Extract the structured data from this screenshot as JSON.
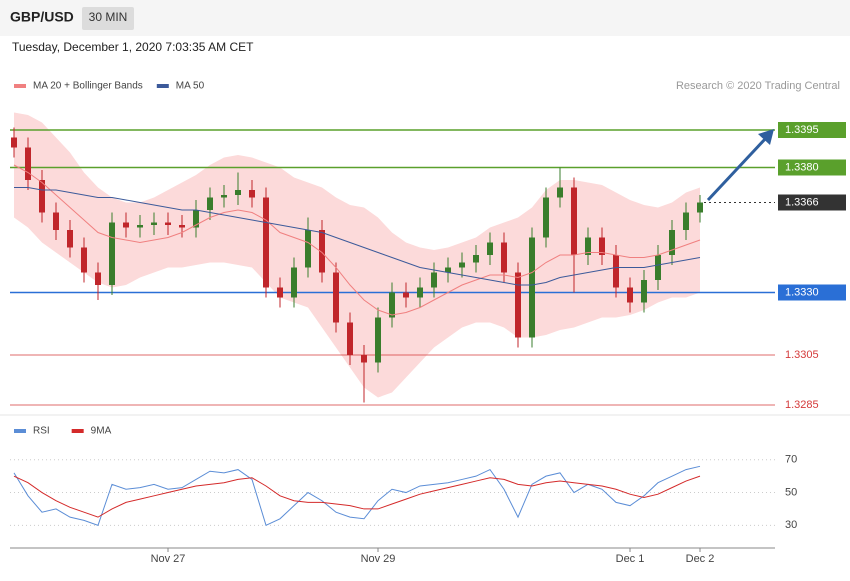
{
  "header": {
    "symbol": "GBP/USD",
    "timeframe": "30 MIN",
    "timestamp": "Tuesday, December 1, 2020 7:03:35 AM CET",
    "source": "Research © 2020 Trading Central"
  },
  "chart_data": [
    {
      "type": "candlestick",
      "ylim": [
        1.3283,
        1.3407
      ],
      "up_color": "#3a7d2c",
      "down_color": "#c0262b",
      "open": [
        1.3392,
        1.3388,
        1.3375,
        1.3362,
        1.3355,
        1.3348,
        1.3338,
        1.3333,
        1.3358,
        1.3356,
        1.3357,
        1.3358,
        1.3357,
        1.3356,
        1.3363,
        1.3368,
        1.3369,
        1.3371,
        1.3368,
        1.3332,
        1.3328,
        1.334,
        1.3355,
        1.3338,
        1.3318,
        1.3305,
        1.3302,
        1.332,
        1.333,
        1.3328,
        1.3332,
        1.3338,
        1.334,
        1.3342,
        1.3345,
        1.335,
        1.3338,
        1.3312,
        1.3352,
        1.3368,
        1.3372,
        1.3345,
        1.3352,
        1.3345,
        1.3332,
        1.3326,
        1.3335,
        1.3345,
        1.3355,
        1.3362
      ],
      "high": [
        1.3396,
        1.3392,
        1.3379,
        1.3366,
        1.3359,
        1.3352,
        1.3342,
        1.3362,
        1.3362,
        1.3361,
        1.3362,
        1.3362,
        1.3361,
        1.3367,
        1.3372,
        1.3373,
        1.3378,
        1.3375,
        1.3372,
        1.3336,
        1.3344,
        1.336,
        1.3359,
        1.3342,
        1.3322,
        1.3309,
        1.3324,
        1.3334,
        1.3334,
        1.3336,
        1.3342,
        1.3344,
        1.3346,
        1.3349,
        1.3354,
        1.3354,
        1.3342,
        1.3356,
        1.3372,
        1.338,
        1.3376,
        1.3356,
        1.3356,
        1.3349,
        1.3336,
        1.3339,
        1.3349,
        1.3359,
        1.3366,
        1.3369
      ],
      "low": [
        1.3384,
        1.3371,
        1.3358,
        1.3351,
        1.3344,
        1.3334,
        1.3327,
        1.3329,
        1.3352,
        1.3352,
        1.3353,
        1.3353,
        1.3352,
        1.3352,
        1.3359,
        1.3364,
        1.3365,
        1.3364,
        1.3328,
        1.3324,
        1.3324,
        1.3336,
        1.3334,
        1.3314,
        1.3301,
        1.3286,
        1.3298,
        1.3316,
        1.3324,
        1.3324,
        1.3328,
        1.3334,
        1.3336,
        1.3338,
        1.3341,
        1.3334,
        1.3308,
        1.3308,
        1.3348,
        1.3364,
        1.333,
        1.3341,
        1.3341,
        1.3328,
        1.3322,
        1.3322,
        1.3331,
        1.3341,
        1.3351,
        1.3358
      ],
      "close": [
        1.3388,
        1.3375,
        1.3362,
        1.3355,
        1.3348,
        1.3338,
        1.3333,
        1.3358,
        1.3356,
        1.3357,
        1.3358,
        1.3357,
        1.3356,
        1.3363,
        1.3368,
        1.3369,
        1.3371,
        1.3368,
        1.3332,
        1.3328,
        1.334,
        1.3355,
        1.3338,
        1.3318,
        1.3305,
        1.3302,
        1.332,
        1.333,
        1.3328,
        1.3332,
        1.3338,
        1.334,
        1.3342,
        1.3345,
        1.335,
        1.3338,
        1.3312,
        1.3352,
        1.3368,
        1.3372,
        1.3345,
        1.3352,
        1.3345,
        1.3332,
        1.3326,
        1.3335,
        1.3345,
        1.3355,
        1.3362,
        1.3366
      ],
      "series": [
        {
          "name": "MA 20 + Bollinger Bands",
          "color": "#f08080",
          "band_color": "#fcdada",
          "values": [
            1.3381,
            1.3378,
            1.3374,
            1.3369,
            1.3364,
            1.3359,
            1.3354,
            1.3352,
            1.3351,
            1.335,
            1.3351,
            1.3352,
            1.3354,
            1.3357,
            1.336,
            1.3362,
            1.3363,
            1.3362,
            1.3359,
            1.3354,
            1.3352,
            1.335,
            1.3346,
            1.334,
            1.3333,
            1.3327,
            1.3323,
            1.3321,
            1.3322,
            1.3324,
            1.3327,
            1.333,
            1.3333,
            1.3335,
            1.3337,
            1.3337,
            1.3336,
            1.3338,
            1.3342,
            1.3345,
            1.3345,
            1.3346,
            1.3346,
            1.3345,
            1.3344,
            1.3344,
            1.3345,
            1.3347,
            1.3349,
            1.3351
          ],
          "upper": [
            1.3402,
            1.3401,
            1.3398,
            1.3392,
            1.3386,
            1.3378,
            1.3372,
            1.3368,
            1.3366,
            1.3366,
            1.3368,
            1.3371,
            1.3374,
            1.3377,
            1.3381,
            1.3384,
            1.3385,
            1.3384,
            1.3382,
            1.338,
            1.3376,
            1.3374,
            1.3372,
            1.3368,
            1.3365,
            1.3364,
            1.336,
            1.3354,
            1.335,
            1.3348,
            1.3347,
            1.3348,
            1.335,
            1.3352,
            1.3356,
            1.3358,
            1.336,
            1.3364,
            1.3371,
            1.3375,
            1.3375,
            1.3374,
            1.3373,
            1.337,
            1.3367,
            1.3365,
            1.3364,
            1.3366,
            1.337,
            1.3372
          ],
          "lower": [
            1.336,
            1.3356,
            1.335,
            1.3346,
            1.3342,
            1.3338,
            1.3334,
            1.3332,
            1.3333,
            1.3336,
            1.3338,
            1.334,
            1.334,
            1.3341,
            1.3342,
            1.3342,
            1.3341,
            1.334,
            1.3334,
            1.3328,
            1.3326,
            1.3324,
            1.3316,
            1.3308,
            1.33,
            1.3292,
            1.3288,
            1.329,
            1.3296,
            1.3302,
            1.3308,
            1.3312,
            1.3316,
            1.3318,
            1.3318,
            1.3316,
            1.3312,
            1.3312,
            1.3313,
            1.3315,
            1.3316,
            1.3318,
            1.332,
            1.332,
            1.3321,
            1.3323,
            1.3326,
            1.3328,
            1.3328,
            1.333
          ]
        },
        {
          "name": "MA 50",
          "color": "#3c5a9a",
          "values": [
            1.3372,
            1.3372,
            1.3371,
            1.3371,
            1.337,
            1.3369,
            1.3368,
            1.3368,
            1.3367,
            1.3366,
            1.3365,
            1.3364,
            1.3363,
            1.3363,
            1.3362,
            1.3361,
            1.336,
            1.3359,
            1.3358,
            1.3357,
            1.3356,
            1.3355,
            1.3354,
            1.3352,
            1.335,
            1.3348,
            1.3346,
            1.3344,
            1.3342,
            1.334,
            1.3339,
            1.3338,
            1.3337,
            1.3336,
            1.3335,
            1.3334,
            1.3333,
            1.3333,
            1.3334,
            1.3336,
            1.3337,
            1.3338,
            1.3339,
            1.334,
            1.334,
            1.334,
            1.3341,
            1.3342,
            1.3343,
            1.3344
          ]
        }
      ],
      "levels": [
        {
          "value": 1.3395,
          "label": "1.3395",
          "color": "#5aa02c",
          "boxed": true
        },
        {
          "value": 1.338,
          "label": "1.3380",
          "color": "#5aa02c",
          "boxed": true
        },
        {
          "value": 1.3366,
          "label": "1.3366",
          "color": "#333333",
          "boxed": true,
          "dotted": true
        },
        {
          "value": 1.333,
          "label": "1.3330",
          "color": "#2a6fd6",
          "boxed": true
        },
        {
          "value": 1.3305,
          "label": "1.3305",
          "color": "#d43a3a",
          "boxed": false
        },
        {
          "value": 1.3285,
          "label": "1.3285",
          "color": "#d43a3a",
          "boxed": false
        }
      ]
    },
    {
      "type": "line",
      "ylim": [
        18,
        79
      ],
      "yticks": [
        70,
        50,
        30
      ],
      "grid": true,
      "categories": [
        null,
        null,
        null,
        null,
        null,
        null,
        null,
        null,
        null,
        null,
        null,
        "Nov 27",
        null,
        null,
        null,
        null,
        null,
        null,
        null,
        null,
        null,
        null,
        null,
        null,
        null,
        null,
        "Nov 29",
        null,
        null,
        null,
        null,
        null,
        null,
        null,
        null,
        null,
        null,
        null,
        null,
        null,
        null,
        null,
        null,
        null,
        "Dec 1",
        null,
        null,
        null,
        null,
        "Dec 2"
      ],
      "series": [
        {
          "name": "RSI",
          "color": "#5b8dd6",
          "values": [
            62,
            48,
            38,
            40,
            35,
            33,
            30,
            55,
            52,
            53,
            55,
            52,
            53,
            58,
            63,
            62,
            64,
            58,
            30,
            34,
            42,
            50,
            45,
            38,
            35,
            34,
            45,
            52,
            50,
            54,
            55,
            56,
            58,
            60,
            64,
            52,
            35,
            55,
            60,
            62,
            50,
            55,
            52,
            44,
            42,
            48,
            56,
            60,
            64,
            66
          ]
        },
        {
          "name": "9MA",
          "color": "#d42a2a",
          "values": [
            60,
            56,
            50,
            45,
            41,
            38,
            35,
            40,
            44,
            46,
            48,
            50,
            52,
            54,
            55,
            56,
            58,
            59,
            54,
            48,
            45,
            44,
            44,
            43,
            42,
            40,
            40,
            43,
            46,
            49,
            51,
            53,
            55,
            57,
            59,
            58,
            55,
            54,
            56,
            57,
            56,
            55,
            54,
            52,
            49,
            47,
            49,
            53,
            57,
            60
          ]
        }
      ]
    }
  ]
}
